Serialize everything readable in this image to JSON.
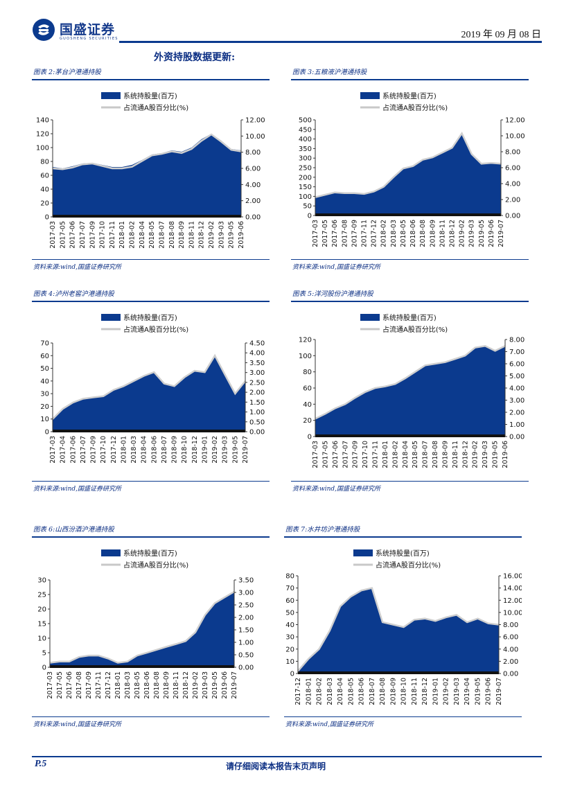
{
  "header": {
    "company": "国盛证券",
    "company_en": "GUOSHENG SECURITIES",
    "date": "2019 年 09 月 08 日",
    "logo_icon": "guosheng-logo-icon",
    "brand_color": "#0b3a8e"
  },
  "section_title": "外资持股数据更新:",
  "footer": {
    "page": "P.5",
    "disclaimer": "请仔细阅读本报告末页声明"
  },
  "charts": [
    {
      "id": "fig2",
      "title": "图表 2:茅台沪港通持股",
      "source": "资料来源:wind,国盛证券研究所"
    },
    {
      "id": "fig3",
      "title": "图表 3:五粮液沪港通持股",
      "source": "资料来源:wind,国盛证券研究所"
    },
    {
      "id": "fig4",
      "title": "图表 4:泸州老窖沪港通持股",
      "source": "资料来源:wind,国盛证券研究所"
    },
    {
      "id": "fig5",
      "title": "图表 5:洋河股份沪港通持股",
      "source": "资料来源:wind,国盛证券研究所"
    },
    {
      "id": "fig6",
      "title": "图表 6:山西汾酒沪港通持股",
      "source": "资料来源:wind,国盛证券研究所"
    },
    {
      "id": "fig7",
      "title": "图表 7:水井坊沪港通持股",
      "source": "资料来源:wind,国盛证券研究所"
    }
  ],
  "chart_data": [
    {
      "type": "area",
      "title": "图表 2:茅台沪港通持股",
      "legend": [
        "系统持股量(百万)",
        "占流通A股百分比(%)"
      ],
      "x": [
        "2017-03",
        "2017-05",
        "2017-06",
        "2017-07",
        "2017-09",
        "2017-10",
        "2017-11",
        "2018-01",
        "2018-02",
        "2018-04",
        "2018-05",
        "2018-07",
        "2018-08",
        "2018-09",
        "2018-11",
        "2018-12",
        "2019-02",
        "2019-03",
        "2019-05",
        "2019-06"
      ],
      "left_ticks": [
        "0",
        "20",
        "40",
        "60",
        "80",
        "100",
        "120",
        "140"
      ],
      "left_max": 140,
      "right_ticks": [
        "0.00",
        "2.00",
        "4.00",
        "6.00",
        "8.00",
        "10.00",
        "12.00"
      ],
      "right_max": 12,
      "values": [
        72,
        70,
        73,
        77,
        78,
        75,
        72,
        72,
        75,
        82,
        90,
        92,
        96,
        94,
        100,
        112,
        120,
        110,
        98,
        96
      ],
      "pct": [
        6.0,
        5.9,
        6.1,
        6.5,
        6.6,
        6.3,
        6.0,
        6.0,
        6.2,
        6.9,
        7.6,
        7.8,
        8.1,
        7.9,
        8.4,
        9.4,
        10.2,
        9.3,
        8.3,
        8.1
      ]
    },
    {
      "type": "area",
      "title": "图表 3:五粮液沪港通持股",
      "legend": [
        "系统持股量(百万)",
        "占流通A股百分比(%)"
      ],
      "x": [
        "2017-03",
        "2017-05",
        "2017-06",
        "2017-08",
        "2017-09",
        "2017-11",
        "2017-12",
        "2018-02",
        "2018-03",
        "2018-05",
        "2018-06",
        "2018-08",
        "2018-09",
        "2018-11",
        "2018-12",
        "2019-02",
        "2019-03",
        "2019-05",
        "2019-06",
        "2019-07"
      ],
      "left_ticks": [
        "0",
        "50",
        "100",
        "150",
        "200",
        "250",
        "300",
        "350",
        "400",
        "450",
        "500"
      ],
      "left_max": 500,
      "right_ticks": [
        "0.00",
        "2.00",
        "4.00",
        "6.00",
        "8.00",
        "10.00",
        "12.00"
      ],
      "right_max": 12,
      "values": [
        95,
        110,
        120,
        118,
        115,
        112,
        125,
        150,
        200,
        245,
        260,
        290,
        305,
        330,
        355,
        430,
        320,
        270,
        275,
        270
      ],
      "pct": [
        2.3,
        2.6,
        2.9,
        2.8,
        2.8,
        2.7,
        3.0,
        3.6,
        4.8,
        5.9,
        6.2,
        7.0,
        7.3,
        7.9,
        8.5,
        10.3,
        7.7,
        6.5,
        6.6,
        6.5
      ]
    },
    {
      "type": "area",
      "title": "图表 4:泸州老窖沪港通持股",
      "legend": [
        "系统持股量(百万)",
        "占流通A股百分比(%)"
      ],
      "x": [
        "2017-03",
        "2017-04",
        "2017-06",
        "2017-07",
        "2017-09",
        "2017-10",
        "2017-12",
        "2018-01",
        "2018-03",
        "2018-04",
        "2018-06",
        "2018-07",
        "2018-09",
        "2018-10",
        "2018-12",
        "2019-01",
        "2019-02",
        "2019-03",
        "2019-05",
        "2019-07"
      ],
      "left_ticks": [
        "0",
        "10",
        "20",
        "30",
        "40",
        "50",
        "60",
        "70"
      ],
      "left_max": 70,
      "right_ticks": [
        "0.00",
        "0.50",
        "1.00",
        "1.50",
        "2.00",
        "2.50",
        "3.00",
        "3.50",
        "4.00",
        "4.50"
      ],
      "right_max": 4.5,
      "values": [
        10,
        18,
        23,
        26,
        27,
        28,
        33,
        36,
        40,
        44,
        47,
        38,
        36,
        43,
        48,
        47,
        60,
        45,
        30,
        40
      ],
      "pct": [
        0.64,
        1.16,
        1.48,
        1.67,
        1.74,
        1.8,
        2.12,
        2.31,
        2.57,
        2.83,
        3.02,
        2.44,
        2.31,
        2.76,
        3.09,
        3.02,
        3.86,
        2.89,
        1.93,
        2.57
      ]
    },
    {
      "type": "area",
      "title": "图表 5:洋河股份沪港通持股",
      "legend": [
        "系统持股量(百万)",
        "占流通A股百分比(%)"
      ],
      "x": [
        "2017-03",
        "2017-05",
        "2017-06",
        "2017-07",
        "2017-09",
        "2017-10",
        "2017-11",
        "2018-01",
        "2018-02",
        "2018-04",
        "2018-05",
        "2018-07",
        "2018-08",
        "2018-09",
        "2018-11",
        "2018-12",
        "2019-02",
        "2019-03",
        "2019-05",
        "2019-06"
      ],
      "left_ticks": [
        "0",
        "20",
        "40",
        "60",
        "80",
        "100",
        "120"
      ],
      "left_max": 120,
      "right_ticks": [
        "0.00",
        "1.00",
        "2.00",
        "3.00",
        "4.00",
        "5.00",
        "6.00",
        "7.00",
        "8.00"
      ],
      "right_max": 8,
      "values": [
        22,
        28,
        35,
        40,
        48,
        55,
        60,
        62,
        65,
        72,
        80,
        88,
        90,
        92,
        96,
        100,
        110,
        112,
        106,
        112
      ],
      "pct": [
        1.47,
        1.87,
        2.33,
        2.67,
        3.2,
        3.67,
        4.0,
        4.13,
        4.33,
        4.8,
        5.33,
        5.87,
        6.0,
        6.13,
        6.4,
        6.67,
        7.33,
        7.47,
        7.07,
        7.47
      ]
    },
    {
      "type": "area",
      "title": "图表 6:山西汾酒沪港通持股",
      "legend": [
        "系统持股量(百万)",
        "占流通A股百分比(%)"
      ],
      "x": [
        "2017-03",
        "2017-05",
        "2017-06",
        "2017-08",
        "2017-09",
        "2017-11",
        "2017-12",
        "2018-01",
        "2018-03",
        "2018-05",
        "2018-06",
        "2018-08",
        "2018-09",
        "2018-11",
        "2018-12",
        "2019-02",
        "2019-03",
        "2019-05",
        "2019-06",
        "2019-07"
      ],
      "left_ticks": [
        "0",
        "5",
        "10",
        "15",
        "20",
        "25",
        "30"
      ],
      "left_max": 30,
      "right_ticks": [
        "0.00",
        "0.50",
        "1.00",
        "1.50",
        "2.00",
        "2.50",
        "3.00",
        "3.50"
      ],
      "right_max": 3.5,
      "values": [
        1.5,
        2,
        2,
        3.5,
        4,
        4,
        3,
        1.5,
        2,
        4,
        5,
        6,
        7,
        8,
        9,
        12,
        18,
        22,
        24,
        26
      ],
      "pct": [
        0.18,
        0.23,
        0.23,
        0.41,
        0.47,
        0.47,
        0.35,
        0.18,
        0.23,
        0.47,
        0.58,
        0.7,
        0.82,
        0.93,
        1.05,
        1.4,
        2.1,
        2.57,
        2.8,
        3.03
      ]
    },
    {
      "type": "area",
      "title": "图表 7:水井坊沪港通持股",
      "legend": [
        "系统持股量(百万)",
        "占流通A股百分比(%)"
      ],
      "x": [
        "2017-12",
        "2018-01",
        "2018-02",
        "2018-03",
        "2018-04",
        "2018-05",
        "2018-06",
        "2018-07",
        "2018-08",
        "2018-09",
        "2018-10",
        "2018-11",
        "2018-12",
        "2019-01",
        "2019-02",
        "2019-03",
        "2019-04",
        "2019-05",
        "2019-06",
        "2019-07"
      ],
      "left_ticks": [
        "0",
        "10",
        "20",
        "30",
        "40",
        "50",
        "60",
        "70",
        "80"
      ],
      "left_max": 80,
      "right_ticks": [
        "0.00",
        "2.00",
        "4.00",
        "6.00",
        "8.00",
        "10.00",
        "12.00",
        "14.00",
        "16.00"
      ],
      "right_max": 16,
      "values": [
        2,
        12,
        20,
        35,
        55,
        63,
        68,
        70,
        42,
        40,
        38,
        44,
        45,
        43,
        46,
        48,
        42,
        45,
        41,
        40
      ],
      "pct": [
        0.4,
        2.4,
        4.0,
        7.0,
        11.0,
        12.6,
        13.6,
        14.0,
        8.4,
        8.0,
        7.6,
        8.8,
        9.0,
        8.6,
        9.2,
        9.6,
        8.4,
        9.0,
        8.2,
        8.0
      ]
    }
  ]
}
